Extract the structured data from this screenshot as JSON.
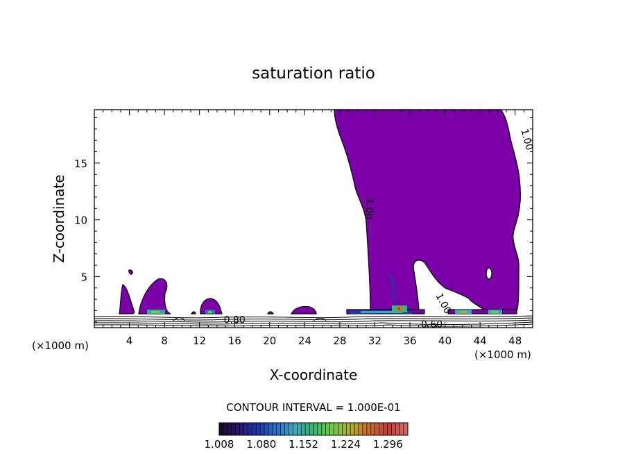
{
  "chart_data": {
    "type": "contour",
    "title": "saturation ratio",
    "xlabel": "X-coordinate",
    "ylabel": "Z-coordinate",
    "x_unit_left": "(×1000 m)",
    "x_unit_right": "(×1000 m)",
    "xlim": [
      0,
      50
    ],
    "ylim": [
      0.5,
      19.7
    ],
    "x_ticks": [
      4,
      8,
      12,
      16,
      20,
      24,
      28,
      32,
      36,
      40,
      44,
      48
    ],
    "y_ticks": [
      5,
      10,
      15
    ],
    "contour_labels": [
      {
        "text": "1.00",
        "x": 49,
        "z": 17,
        "rotate": 75
      },
      {
        "text": "1.00",
        "x": 31,
        "z": 11,
        "rotate": 95
      },
      {
        "text": "1.00",
        "x": 39.5,
        "z": 2.5,
        "rotate": 62
      },
      {
        "text": "0.80",
        "x": 16,
        "z": 0.9,
        "rotate": 0
      },
      {
        "text": "0.60",
        "x": 38.5,
        "z": 0.5,
        "rotate": 0
      }
    ],
    "contour_interval_label": "CONTOUR INTERVAL = 1.000E-01",
    "colorbar": {
      "ticks": [
        "1.008",
        "1.080",
        "1.152",
        "1.224",
        "1.296"
      ],
      "min": 1.008,
      "max": 1.33,
      "colors": [
        "#1a0a2e",
        "#2c1470",
        "#1e3aa8",
        "#2a72c8",
        "#38a8c0",
        "#3ab870",
        "#6ccc40",
        "#b0b030",
        "#c8702a",
        "#c83a30",
        "#d06a6a"
      ]
    },
    "fill_color": "#7b00a8"
  }
}
